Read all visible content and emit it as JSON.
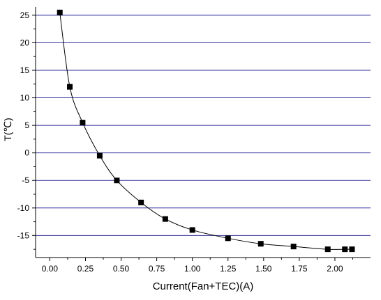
{
  "chart_data": {
    "type": "scatter",
    "title": "",
    "xlabel": "Current(Fan+TEC)(A)",
    "ylabel": "T(℃)",
    "xlim": [
      -0.1,
      2.25
    ],
    "ylim": [
      -19,
      26.5
    ],
    "x_ticks": [
      0,
      0.25,
      0.5,
      0.75,
      1,
      1.25,
      1.5,
      1.75,
      2
    ],
    "x_tick_labels": [
      "0.00",
      "0.25",
      "0.50",
      "0.75",
      "1.00",
      "1.25",
      "1.50",
      "1.75",
      "2.00"
    ],
    "y_ticks": [
      -15,
      -10,
      -5,
      0,
      5,
      10,
      15,
      20,
      25
    ],
    "y_tick_labels": [
      "-15",
      "-10",
      "-5",
      "0",
      "5",
      "10",
      "15",
      "20",
      "25"
    ],
    "grid": "horizontal lines at major y ticks",
    "grid_color": "#2b2b9a",
    "marker": "square",
    "marker_color": "#000000",
    "line_color": "#000000",
    "connect_points": "smooth curve",
    "legend": "none",
    "series": [
      {
        "x": [
          0.07,
          0.14,
          0.23,
          0.35,
          0.47,
          0.64,
          0.81,
          1.0,
          1.25,
          1.48,
          1.71,
          1.95,
          2.07,
          2.12
        ],
        "y": [
          25.5,
          12,
          5.5,
          -0.5,
          -5,
          -9,
          -12,
          -14,
          -15.5,
          -16.5,
          -17,
          -17.5,
          -17.5,
          -17.5
        ]
      }
    ]
  }
}
